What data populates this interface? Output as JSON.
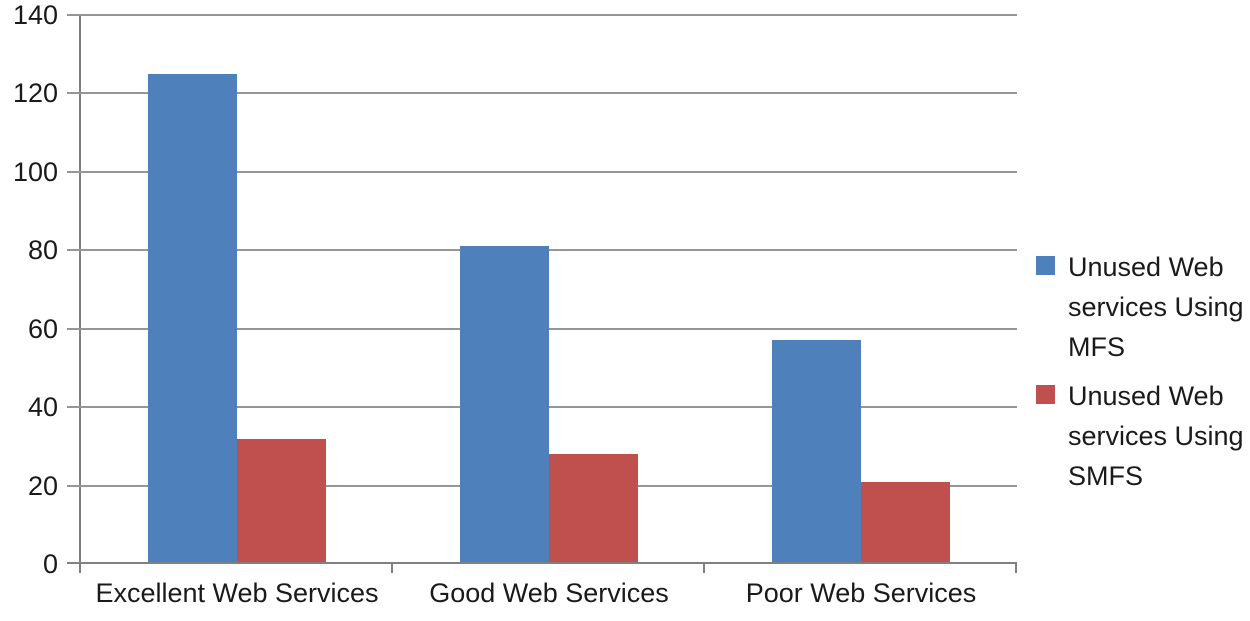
{
  "chart_data": {
    "type": "bar",
    "categories": [
      "Excellent Web Services",
      "Good Web Services",
      "Poor Web Services"
    ],
    "series": [
      {
        "name": "Unused Web services Using MFS",
        "color": "#4e80bc",
        "values": [
          125,
          81,
          57
        ]
      },
      {
        "name": "Unused Web services Using SMFS",
        "color": "#c0504d",
        "values": [
          32,
          28,
          21
        ]
      }
    ],
    "ylim": [
      0,
      140
    ],
    "yticks": [
      0,
      20,
      40,
      60,
      80,
      100,
      120,
      140
    ],
    "grid": true,
    "legend_position": "right",
    "colors": {
      "gridline": "#969696",
      "axis": "#808080",
      "text": "#1a1a1a",
      "background": "#ffffff"
    }
  }
}
